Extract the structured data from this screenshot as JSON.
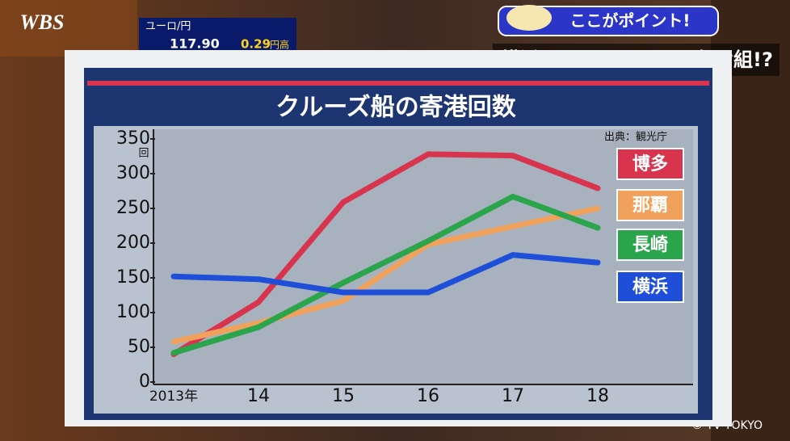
{
  "broadcast": {
    "logo": "WBS",
    "ticker_label": "ユーロ/円",
    "ticker_rate": "117.90",
    "ticker_change": "0.29",
    "ticker_direction": "円高",
    "point_label": "ここがポイント!",
    "headline": "横浜はインバウンドの負け組!?",
    "copyright": "© TV TOKYO"
  },
  "chart_data": {
    "type": "line",
    "title": "クルーズ船の寄港回数",
    "y_unit": "回",
    "source": "出典：観光庁",
    "categories": [
      "2013年",
      "14",
      "15",
      "16",
      "17",
      "18"
    ],
    "series": [
      {
        "name": "博多",
        "color": "#d8344e",
        "values": [
          40,
          115,
          259,
          328,
          326,
          279
        ]
      },
      {
        "name": "那覇",
        "color": "#f0a15c",
        "values": [
          58,
          85,
          117,
          198,
          224,
          250
        ]
      },
      {
        "name": "長崎",
        "color": "#2aa54c",
        "values": [
          42,
          79,
          143,
          203,
          267,
          222
        ]
      },
      {
        "name": "横浜",
        "color": "#1f4fd8",
        "values": [
          152,
          148,
          129,
          129,
          183,
          172
        ]
      }
    ],
    "ylim": [
      0,
      350
    ],
    "yticks": [
      0,
      50,
      100,
      150,
      200,
      250,
      300,
      350
    ],
    "grid": false
  }
}
